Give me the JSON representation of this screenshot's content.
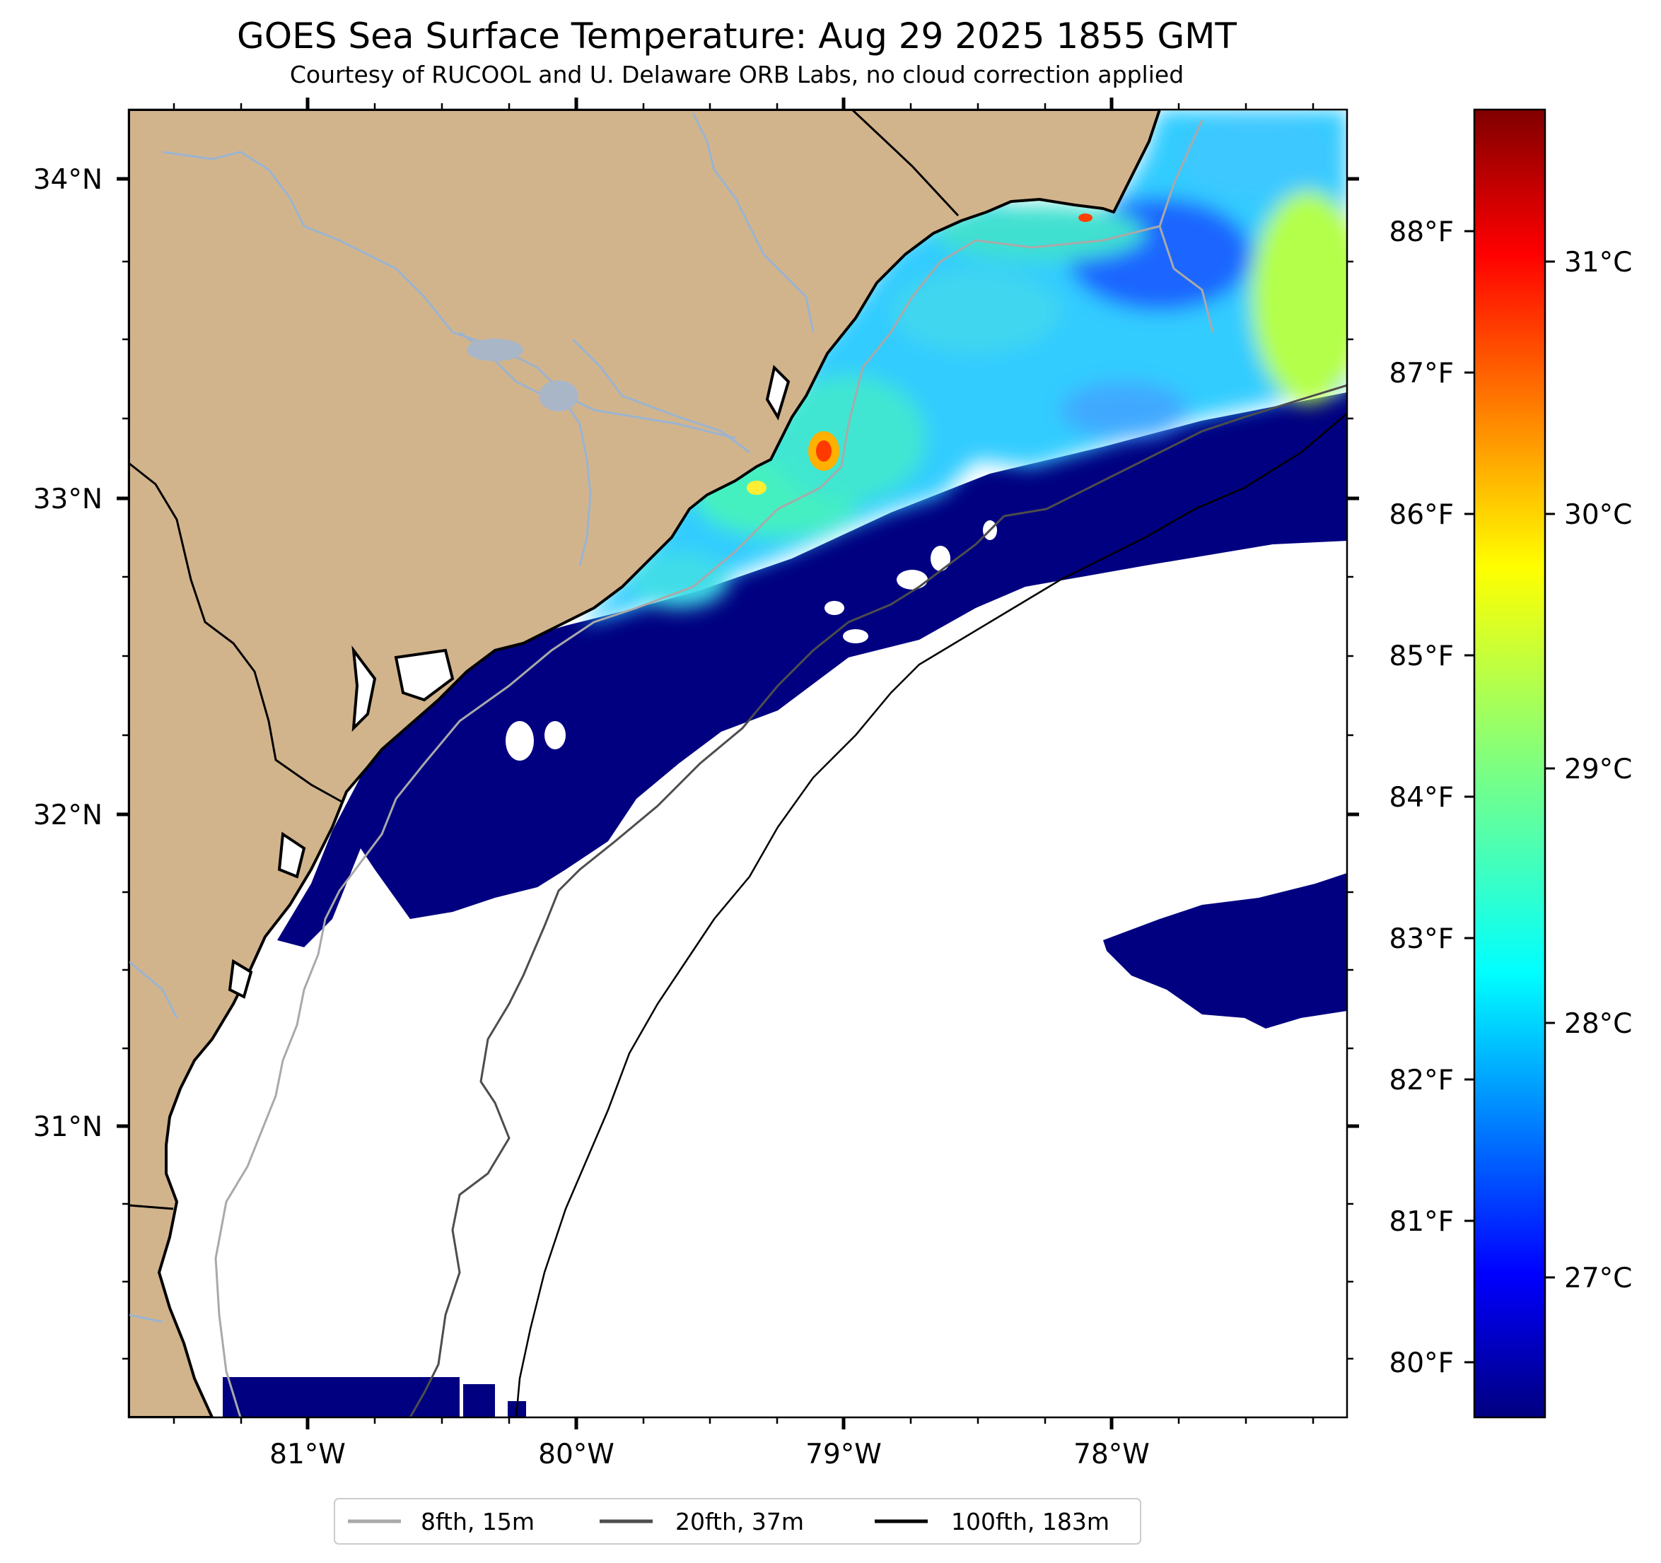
{
  "title": "GOES Sea Surface Temperature: Aug 29 2025 1855 GMT",
  "subtitle": "Courtesy of RUCOOL and U. Delaware ORB Labs, no cloud correction applied",
  "map": {
    "lon_ticks": [
      "81°W",
      "80°W",
      "79°W",
      "78°W"
    ],
    "lat_ticks": [
      "34°N",
      "33°N",
      "32°N",
      "31°N"
    ],
    "fahrenheit_ticks": [
      "88°F",
      "87°F",
      "86°F",
      "85°F",
      "84°F",
      "83°F",
      "82°F",
      "81°F",
      "80°F"
    ],
    "land_color": "#d2b48c",
    "cloud_mask_color": "#000080"
  },
  "colorbar": {
    "colormap": "jet",
    "celsius_ticks": [
      "31°C",
      "30°C",
      "29°C",
      "28°C",
      "27°C"
    ]
  },
  "legend": {
    "items": [
      {
        "label": "8fth, 15m",
        "color": "#a9a9a9"
      },
      {
        "label": "20fth, 37m",
        "color": "#4d4d4d"
      },
      {
        "label": "100fth, 183m",
        "color": "#000000"
      }
    ]
  }
}
